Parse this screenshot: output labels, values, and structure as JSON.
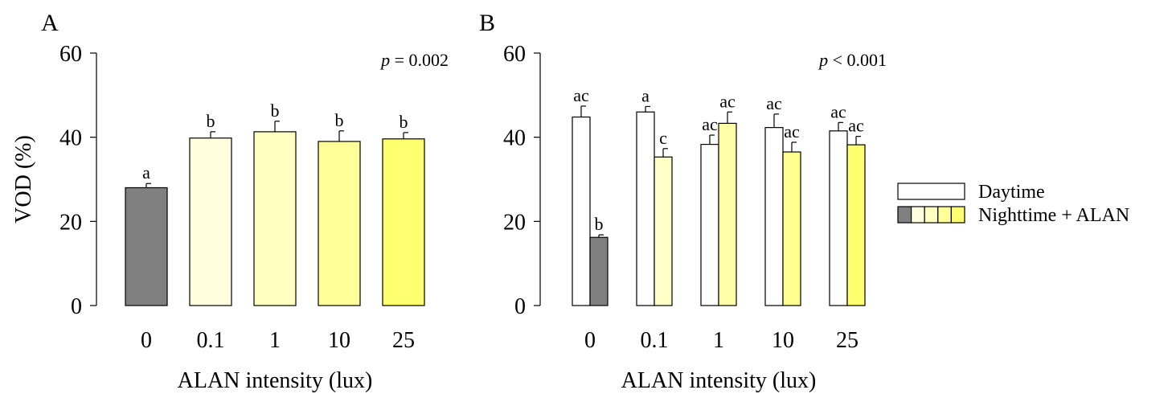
{
  "chart_data": [
    {
      "panel": "A",
      "type": "bar",
      "annotation": {
        "p_symbol": "p",
        "p_text": "= 0.002"
      },
      "xlabel": "ALAN intensity (lux)",
      "ylabel": "VOD (%)",
      "ylim": [
        0,
        60
      ],
      "yticks": [
        "0",
        "20",
        "40",
        "60"
      ],
      "categories": [
        "0",
        "0.1",
        "1",
        "10",
        "25"
      ],
      "series": [
        {
          "values": [
            28,
            39.8,
            41.3,
            39,
            39.6
          ],
          "errors": [
            1.0,
            1.5,
            2.5,
            2.5,
            1.5
          ],
          "letters": [
            "a",
            "b",
            "b",
            "b",
            "b"
          ],
          "colors": [
            "#808080",
            "#FFFFE0",
            "#FFFFC0",
            "#FFFF98",
            "#FFFF70"
          ]
        }
      ]
    },
    {
      "panel": "B",
      "type": "bar",
      "annotation": {
        "p_symbol": "p",
        "p_text": "< 0.001"
      },
      "xlabel": "ALAN intensity (lux)",
      "ylabel": "",
      "ylim": [
        0,
        60
      ],
      "yticks": [
        "0",
        "20",
        "40",
        "60"
      ],
      "categories": [
        "0",
        "0.1",
        "1",
        "10",
        "25"
      ],
      "series": [
        {
          "name": "Daytime",
          "values": [
            44.8,
            46,
            38.3,
            42.3,
            41.5
          ],
          "errors": [
            2.6,
            1.3,
            2.2,
            3.2,
            2.0
          ],
          "letters": [
            "ac",
            "a",
            "ac",
            "ac",
            "ac"
          ],
          "colors": [
            "#FFFFFF",
            "#FFFFFF",
            "#FFFFFF",
            "#FFFFFF",
            "#FFFFFF"
          ]
        },
        {
          "name": "Nighttime + ALAN",
          "values": [
            16.2,
            35.3,
            43.3,
            36.5,
            38.2
          ],
          "errors": [
            0.6,
            2.0,
            2.7,
            2.3,
            2.0
          ],
          "letters": [
            "b",
            "c",
            "ac",
            "ac",
            "ac"
          ],
          "colors": [
            "#808080",
            "#FFFFC8",
            "#FFFFA8",
            "#FFFF90",
            "#FFFF70"
          ]
        }
      ]
    }
  ],
  "legend": {
    "position": "right",
    "items": [
      {
        "label": "Daytime",
        "swatches": [
          "#FFFFFF"
        ]
      },
      {
        "label": "Nighttime + ALAN",
        "swatches": [
          "#808080",
          "#FFFFE0",
          "#FFFFC0",
          "#FFFF98",
          "#FFFF70"
        ]
      }
    ]
  }
}
